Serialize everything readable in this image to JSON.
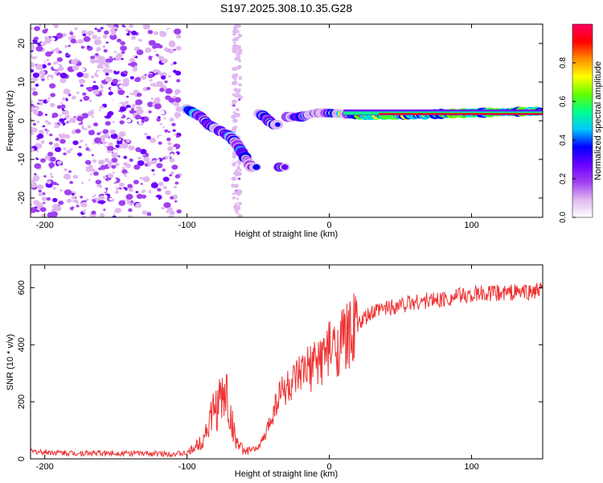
{
  "title": "S197.2025.308.10.35.G28",
  "chart_data": [
    {
      "type": "heatmap",
      "xlabel": "Height of straight line (km)",
      "ylabel": "Frequency (Hz)",
      "xlim": [
        -210,
        150
      ],
      "ylim": [
        -25,
        25
      ],
      "xticks": [
        -200,
        -100,
        0,
        100
      ],
      "yticks": [
        -20,
        -10,
        0,
        10,
        20
      ],
      "colorbar": {
        "label": "Normalized spectral amplitude",
        "range": [
          0,
          1
        ],
        "ticks": [
          0.0,
          0.2,
          0.4,
          0.6,
          0.8
        ],
        "tick_labels": [
          "0.0",
          "0.2",
          "0.4",
          "0.6",
          "0.8"
        ],
        "stops": [
          "#ffffff",
          "#e0b8f0",
          "#a040f0",
          "#6a00ff",
          "#0000ff",
          "#00c8ff",
          "#00ff90",
          "#60ff00",
          "#ffff00",
          "#ff9000",
          "#ff0000",
          "#ff0060"
        ]
      },
      "features": {
        "noise_region_x": [
          -210,
          -105
        ],
        "vertical_band_x": -65,
        "ridge_points": [
          {
            "x": -100,
            "y": 3
          },
          {
            "x": -95,
            "y": 2
          },
          {
            "x": -90,
            "y": 1
          },
          {
            "x": -85,
            "y": -1
          },
          {
            "x": -80,
            "y": -2
          },
          {
            "x": -75,
            "y": -3
          },
          {
            "x": -70,
            "y": -4
          },
          {
            "x": -65,
            "y": -6
          },
          {
            "x": -60,
            "y": -9
          },
          {
            "x": -55,
            "y": -12
          },
          {
            "x": -50,
            "y": 2
          },
          {
            "x": -45,
            "y": 1
          },
          {
            "x": -40,
            "y": -1
          },
          {
            "x": -35,
            "y": -12
          },
          {
            "x": -30,
            "y": 1
          },
          {
            "x": -20,
            "y": 1
          },
          {
            "x": -10,
            "y": 2
          },
          {
            "x": 0,
            "y": 2
          },
          {
            "x": 20,
            "y": 1.5
          },
          {
            "x": 40,
            "y": 1.5
          },
          {
            "x": 60,
            "y": 1.5
          },
          {
            "x": 80,
            "y": 1.8
          },
          {
            "x": 100,
            "y": 2
          },
          {
            "x": 120,
            "y": 2.2
          },
          {
            "x": 150,
            "y": 2.5
          }
        ]
      }
    },
    {
      "type": "line",
      "xlabel": "Height of straight line (km)",
      "ylabel": "SNR (10 * v/v)",
      "xlim": [
        -210,
        150
      ],
      "ylim": [
        0,
        680
      ],
      "xticks": [
        -200,
        -100,
        0,
        100
      ],
      "yticks": [
        0,
        200,
        400,
        600
      ],
      "color": "#ee3333",
      "series": [
        {
          "name": "SNR",
          "x": [
            -210,
            -180,
            -150,
            -120,
            -100,
            -90,
            -85,
            -80,
            -75,
            -72,
            -70,
            -65,
            -60,
            -55,
            -50,
            -45,
            -40,
            -35,
            -30,
            -25,
            -20,
            -15,
            -10,
            -5,
            0,
            5,
            10,
            15,
            20,
            25,
            30,
            40,
            50,
            60,
            70,
            80,
            90,
            100,
            110,
            120,
            130,
            140,
            150
          ],
          "y": [
            25,
            20,
            20,
            18,
            18,
            60,
            120,
            180,
            210,
            230,
            150,
            60,
            25,
            30,
            40,
            80,
            160,
            230,
            250,
            260,
            290,
            310,
            330,
            360,
            380,
            390,
            420,
            440,
            470,
            490,
            510,
            530,
            540,
            550,
            555,
            560,
            570,
            575,
            580,
            580,
            585,
            585,
            590
          ]
        }
      ]
    }
  ]
}
